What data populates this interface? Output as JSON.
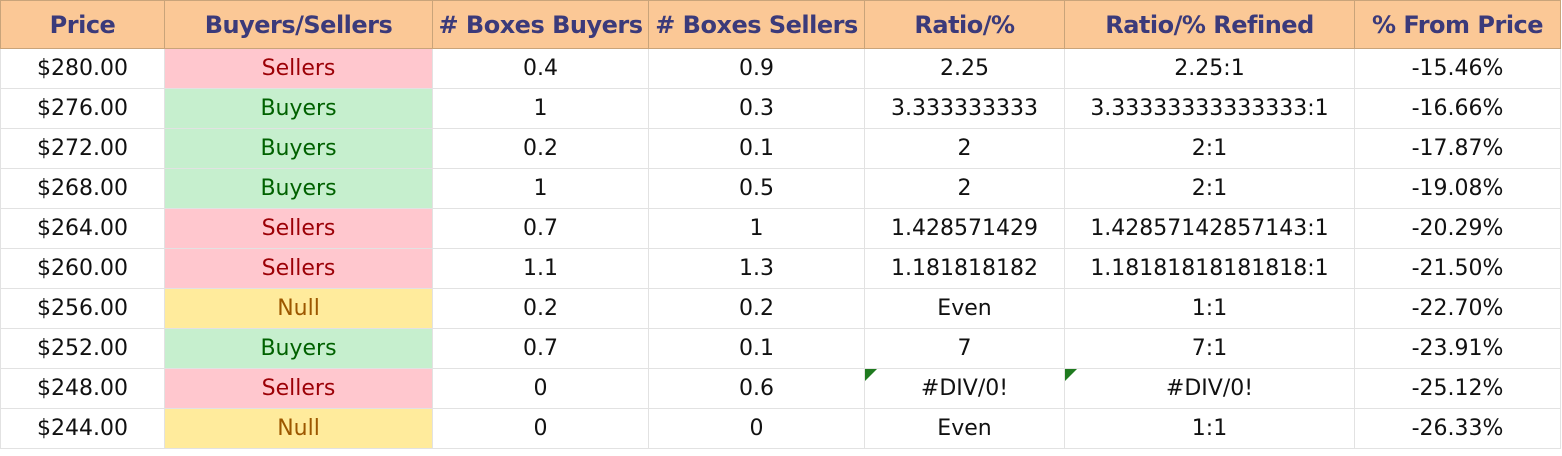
{
  "headers": [
    "Price",
    "Buyers/Sellers",
    "# Boxes Buyers",
    "# Boxes Sellers",
    "Ratio/%",
    "Ratio/% Refined",
    "% From Price"
  ],
  "status_colors": {
    "Sellers": {
      "bg": "#ffc7ce",
      "fg": "#9c0006"
    },
    "Buyers": {
      "bg": "#c6efce",
      "fg": "#006100"
    },
    "Null": {
      "bg": "#ffeb9c",
      "fg": "#9c5700"
    }
  },
  "header_color": "#fbc896",
  "rows": [
    {
      "price": "$280.00",
      "side": "Sellers",
      "boxes_buyers": "0.4",
      "boxes_sellers": "0.9",
      "ratio": "2.25",
      "ratio_refined": "2.25:1",
      "pct_from_price": "-15.46%"
    },
    {
      "price": "$276.00",
      "side": "Buyers",
      "boxes_buyers": "1",
      "boxes_sellers": "0.3",
      "ratio": "3.333333333",
      "ratio_refined": "3.33333333333333:1",
      "pct_from_price": "-16.66%"
    },
    {
      "price": "$272.00",
      "side": "Buyers",
      "boxes_buyers": "0.2",
      "boxes_sellers": "0.1",
      "ratio": "2",
      "ratio_refined": "2:1",
      "pct_from_price": "-17.87%"
    },
    {
      "price": "$268.00",
      "side": "Buyers",
      "boxes_buyers": "1",
      "boxes_sellers": "0.5",
      "ratio": "2",
      "ratio_refined": "2:1",
      "pct_from_price": "-19.08%"
    },
    {
      "price": "$264.00",
      "side": "Sellers",
      "boxes_buyers": "0.7",
      "boxes_sellers": "1",
      "ratio": "1.428571429",
      "ratio_refined": "1.42857142857143:1",
      "pct_from_price": "-20.29%"
    },
    {
      "price": "$260.00",
      "side": "Sellers",
      "boxes_buyers": "1.1",
      "boxes_sellers": "1.3",
      "ratio": "1.181818182",
      "ratio_refined": "1.18181818181818:1",
      "pct_from_price": "-21.50%"
    },
    {
      "price": "$256.00",
      "side": "Null",
      "boxes_buyers": "0.2",
      "boxes_sellers": "0.2",
      "ratio": "Even",
      "ratio_refined": "1:1",
      "pct_from_price": "-22.70%"
    },
    {
      "price": "$252.00",
      "side": "Buyers",
      "boxes_buyers": "0.7",
      "boxes_sellers": "0.1",
      "ratio": "7",
      "ratio_refined": "7:1",
      "pct_from_price": "-23.91%"
    },
    {
      "price": "$248.00",
      "side": "Sellers",
      "boxes_buyers": "0",
      "boxes_sellers": "0.6",
      "ratio": "#DIV/0!",
      "ratio_refined": "#DIV/0!",
      "pct_from_price": "-25.12%",
      "error_flag": true
    },
    {
      "price": "$244.00",
      "side": "Null",
      "boxes_buyers": "0",
      "boxes_sellers": "0",
      "ratio": "Even",
      "ratio_refined": "1:1",
      "pct_from_price": "-26.33%"
    }
  ]
}
